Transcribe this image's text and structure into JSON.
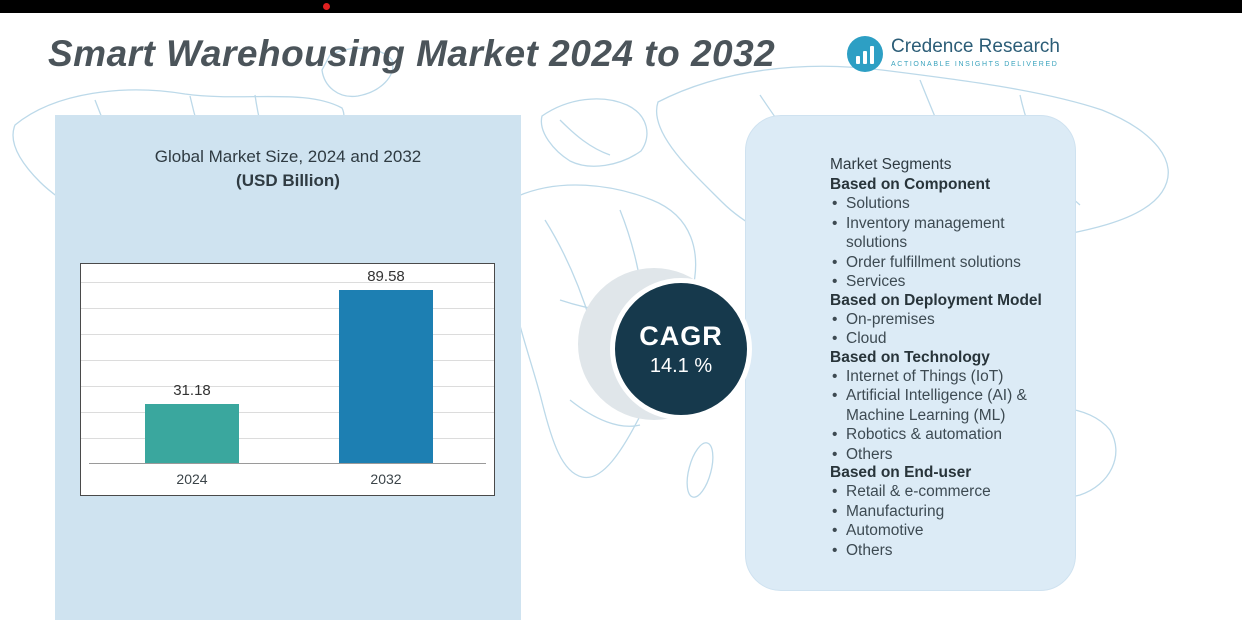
{
  "header": {
    "title": "Smart Warehousing Market 2024 to 2032",
    "logo": {
      "name": "Credence Research",
      "tagline": "Actionable Insights Delivered"
    }
  },
  "chart_panel": {
    "heading_line1": "Global Market Size, 2024 and 2032",
    "heading_line2": "(USD Billion)"
  },
  "chart_data": {
    "type": "bar",
    "categories": [
      "2024",
      "2032"
    ],
    "values": [
      31.18,
      89.58
    ],
    "data_labels": [
      "31.18",
      "89.58"
    ],
    "title": "Global Market Size, 2024 and 2032 (USD Billion)",
    "xlabel": "",
    "ylabel": "",
    "ylim": [
      0,
      100
    ],
    "grid": true,
    "legend": false,
    "bar_colors": [
      "#3aa79e",
      "#1d7fb2"
    ]
  },
  "cagr": {
    "label": "CAGR",
    "value": "14.1 %"
  },
  "segments": {
    "title": "Market Segments",
    "groups": [
      {
        "heading": "Based on Component",
        "items": [
          "Solutions",
          "Inventory management solutions",
          "Order fulfillment solutions",
          "Services"
        ]
      },
      {
        "heading": "Based on Deployment Model",
        "items": [
          "On-premises",
          "Cloud"
        ]
      },
      {
        "heading": "Based on Technology",
        "items": [
          "Internet of Things (IoT)",
          "Artificial Intelligence (AI) & Machine Learning (ML)",
          "Robotics & automation",
          "Others"
        ]
      },
      {
        "heading": "Based on End-user",
        "items": [
          "Retail & e-commerce",
          "Manufacturing",
          "Automotive",
          "Others"
        ]
      }
    ]
  },
  "colors": {
    "panel_left": "#cfe3f0",
    "panel_right": "#dcebf6",
    "cagr_circle": "#16394c",
    "bar_2024": "#3aa79e",
    "bar_2032": "#1d7fb2",
    "map_line": "#bcd9e9",
    "topbar": "#000000"
  }
}
